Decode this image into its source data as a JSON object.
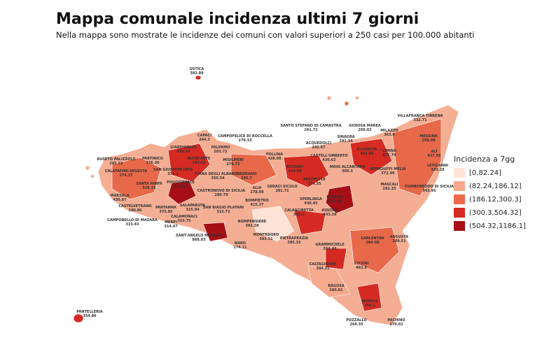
{
  "header": {
    "title": "Mappa comunale incidenza ultimi 7 giorni",
    "subtitle": "Nella mappa sono mostrate le incidenze dei comuni con valori superiori a 250 casi per 100.000 abitanti"
  },
  "legend": {
    "title": "Incidenza a 7gg",
    "items": [
      {
        "label": "[0,82.24]",
        "color": "#fde3d6"
      },
      {
        "label": "(82.24,186.12]",
        "color": "#f6a98d"
      },
      {
        "label": "(186.12,300.3]",
        "color": "#ec6a4c"
      },
      {
        "label": "(300.3,504.32]",
        "color": "#d52b22"
      },
      {
        "label": "(504.32,1186.1]",
        "color": "#a50f15"
      }
    ]
  },
  "labels": [
    {
      "name": "USTICA",
      "value": 382.89
    },
    {
      "name": "PANTELLERIA",
      "value": 354.86
    },
    {
      "name": "CAPACI",
      "value": 344.3
    },
    {
      "name": "PALERMO",
      "value": 283.72
    },
    {
      "name": "GIARDINELLO",
      "value": 430.54
    },
    {
      "name": "PARTINICO",
      "value": 376.36
    },
    {
      "name": "ALTOFONTE",
      "value": 293.63
    },
    {
      "name": "MISILMERI",
      "value": 279.72
    },
    {
      "name": "CAMPOFELICE DI ROCCELLA",
      "value": 279.33
    },
    {
      "name": "POLLINA",
      "value": 428.98
    },
    {
      "name": "SANTO STEFANO DI CAMASTRA",
      "value": 261.72
    },
    {
      "name": "GIOIOSA MAREA",
      "value": 269.02
    },
    {
      "name": "VILLAFRANCA TIRRENA",
      "value": 332.71
    },
    {
      "name": "MILAZZO",
      "value": 363.9
    },
    {
      "name": "MESSINA",
      "value": 258.98
    },
    {
      "name": "SINAGRA",
      "value": 281.34
    },
    {
      "name": "ACQUEDOLCI",
      "value": 292.67
    },
    {
      "name": "FLORESTA",
      "value": 432.96
    },
    {
      "name": "LIMINA",
      "value": 271.74
    },
    {
      "name": "ALÌ",
      "value": 437.96
    },
    {
      "name": "LETOJANNI",
      "value": 320.28
    },
    {
      "name": "CASTELL'UMBERTO",
      "value": 436.62
    },
    {
      "name": "REITANO",
      "value": 410.98
    },
    {
      "name": "MOIO ALCANTARA",
      "value": 300.3
    },
    {
      "name": "MONGIUFFI MELIA",
      "value": 372.96
    },
    {
      "name": "FIUMEFREDDO DI SICILIA",
      "value": 343.95
    },
    {
      "name": "MASCALI",
      "value": 282.25
    },
    {
      "name": "BUSETO PALIZZOLO",
      "value": 285.51
    },
    {
      "name": "CALATAFIMI-SEGESTA",
      "value": 274.37
    },
    {
      "name": "SAN GIUSEPPE JATO",
      "value": 371.1
    },
    {
      "name": "PIANA DEGLI ALBANESI",
      "value": 350.54
    },
    {
      "name": "GODRANO",
      "value": 295.7
    },
    {
      "name": "SANTA NINFA",
      "value": 528.33
    },
    {
      "name": "POGGIOREALE",
      "value": 1186.1
    },
    {
      "name": "CASTRONOVO DI SICILIA",
      "value": 280.79
    },
    {
      "name": "ALIA",
      "value": 278.08
    },
    {
      "name": "GERACI SICULO",
      "value": 281.71
    },
    {
      "name": "MISTRETTA",
      "value": 274.35
    },
    {
      "name": "NICOSIA",
      "value": 265.23
    },
    {
      "name": "MARSALA",
      "value": 430.87
    },
    {
      "name": "CASTELVETRANO",
      "value": 340.86
    },
    {
      "name": "PARTANNA",
      "value": 375.85
    },
    {
      "name": "SALAPARUTA",
      "value": 315.94
    },
    {
      "name": "SAN BIAGIO PLATANI",
      "value": 312.72
    },
    {
      "name": "BOMPIETRO",
      "value": 415.37
    },
    {
      "name": "SPERLINGA",
      "value": 430.45
    },
    {
      "name": "ASSORO",
      "value": 443.29
    },
    {
      "name": "CALASCIBETTA",
      "value": 325.1
    },
    {
      "name": "CALAMONACI",
      "value": 353.75
    },
    {
      "name": "CAMPOBELLO DI MAZARA",
      "value": 315.43
    },
    {
      "name": "MENFI",
      "value": 314.97
    },
    {
      "name": "BOMPENSIERE",
      "value": 392.38
    },
    {
      "name": "SANT'ANGELO MUXARO",
      "value": 868.03
    },
    {
      "name": "MONTEDORO",
      "value": 303.51
    },
    {
      "name": "PIETRAPERZIA",
      "value": 285.33
    },
    {
      "name": "CARLENTINI",
      "value": 284.08
    },
    {
      "name": "AUGUSTA",
      "value": 289.51
    },
    {
      "name": "NARO",
      "value": 274.11
    },
    {
      "name": "GRAMMICHELE",
      "value": 264.46
    },
    {
      "name": "CALTAGIRONE",
      "value": 304.35
    },
    {
      "name": "VIZZINI",
      "value": 402.8
    },
    {
      "name": "RAGUSA",
      "value": 260.81
    },
    {
      "name": "MODICA",
      "value": 354.1
    },
    {
      "name": "POZZALLO",
      "value": 264.35
    },
    {
      "name": "PACHINO",
      "value": 279.02
    }
  ]
}
